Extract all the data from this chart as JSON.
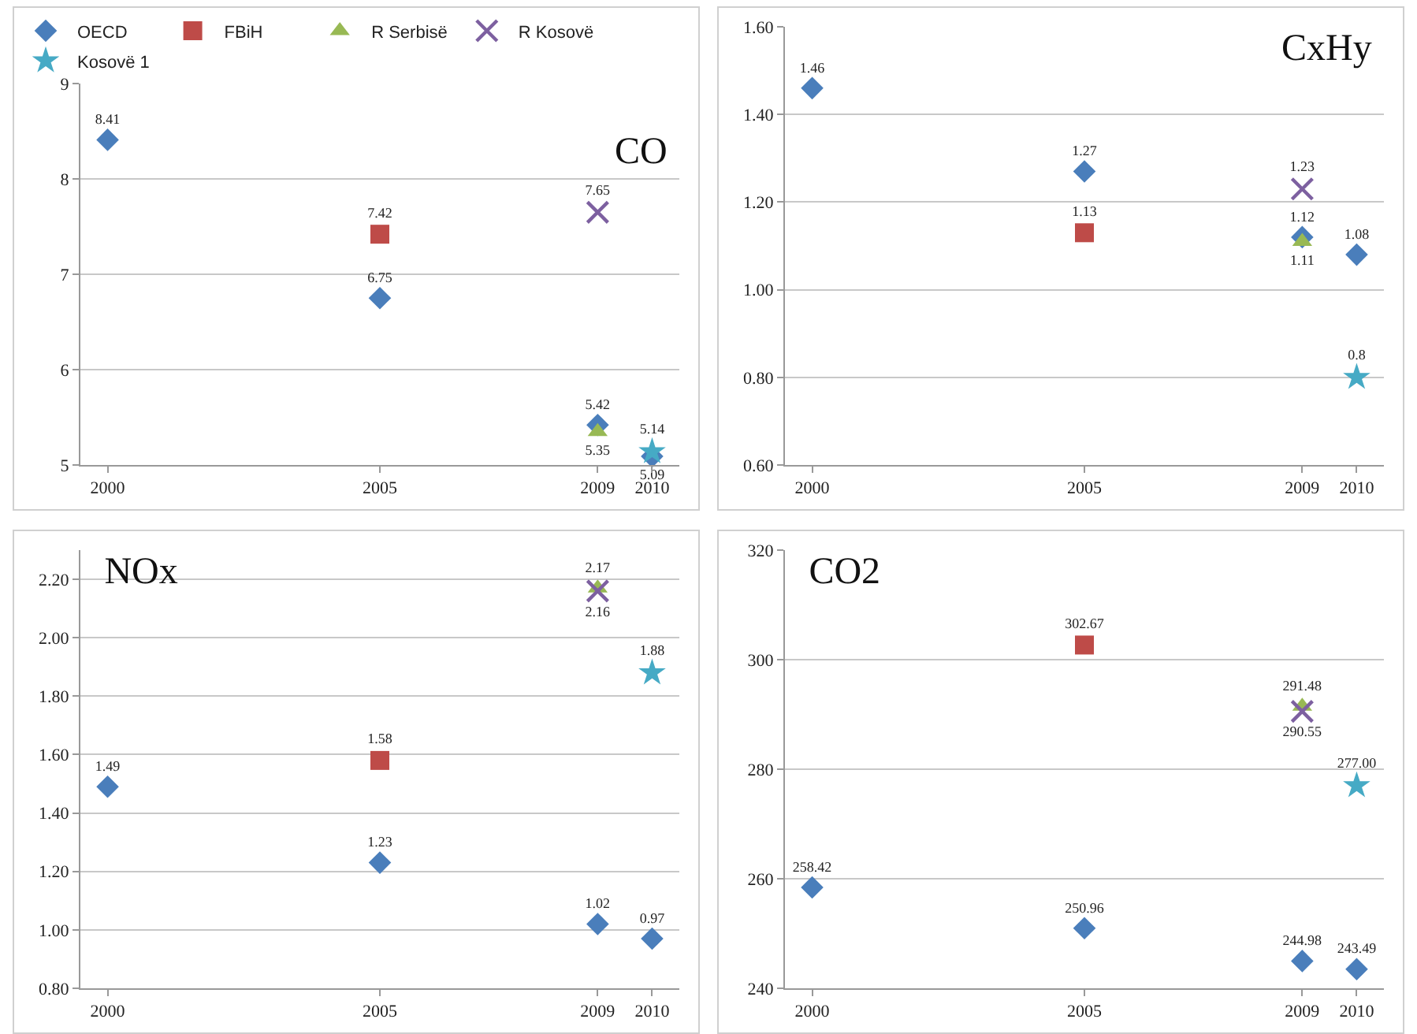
{
  "chart_data": [
    {
      "type": "scatter",
      "title": "CO",
      "xlim": [
        1999.5,
        2010.5
      ],
      "xticks": [
        2000,
        2005,
        2009,
        2010
      ],
      "ylim": [
        5,
        9
      ],
      "yticks": [
        5,
        6,
        7,
        8,
        9
      ],
      "grid": "y",
      "legend": "top",
      "series": [
        {
          "name": "OECD",
          "color": "#4a7ebb",
          "marker": "diamond",
          "x": [
            2000,
            2005,
            2009,
            2010
          ],
          "values": [
            8.41,
            6.75,
            5.42,
            5.09
          ],
          "value_labels": [
            "8.41",
            "6.75",
            "5.42",
            "5.09"
          ]
        },
        {
          "name": "FBiH",
          "color": "#be4b48",
          "marker": "square",
          "x": [
            2005
          ],
          "values": [
            7.42
          ],
          "value_labels": [
            "7.42"
          ]
        },
        {
          "name": "R Serbisë",
          "color": "#98b954",
          "marker": "triangle",
          "x": [
            2009
          ],
          "values": [
            5.35
          ],
          "value_labels": [
            "5.35"
          ]
        },
        {
          "name": "R Kosovë",
          "color": "#7d60a0",
          "marker": "cross",
          "x": [
            2009
          ],
          "values": [
            7.65
          ],
          "value_labels": [
            "7.65"
          ]
        },
        {
          "name": "Kosovë 1",
          "color": "#46aac5",
          "marker": "star",
          "x": [
            2010
          ],
          "values": [
            5.14
          ],
          "value_labels": [
            "5.14"
          ]
        }
      ]
    },
    {
      "type": "scatter",
      "title": "CxHy",
      "xlim": [
        1999.5,
        2010.5
      ],
      "xticks": [
        2000,
        2005,
        2009,
        2010
      ],
      "ylim": [
        0.6,
        1.6
      ],
      "yticks": [
        {
          "value": 0.6,
          "label": "0.60"
        },
        {
          "value": 0.8,
          "label": "0.80"
        },
        {
          "value": 1.0,
          "label": "1.00"
        },
        {
          "value": 1.2,
          "label": "1.20"
        },
        {
          "value": 1.4,
          "label": "1.40"
        },
        {
          "value": 1.6,
          "label": "1.60"
        }
      ],
      "grid": "y",
      "series": [
        {
          "color": "#4a7ebb",
          "marker": "diamond",
          "x": [
            2000,
            2005,
            2009,
            2010
          ],
          "values": [
            1.46,
            1.27,
            1.12,
            1.08
          ],
          "value_labels": [
            "1.46",
            "1.27",
            "1.12",
            "1.08"
          ]
        },
        {
          "color": "#be4b48",
          "marker": "square",
          "x": [
            2005
          ],
          "values": [
            1.13
          ],
          "value_labels": [
            "1.13"
          ]
        },
        {
          "color": "#98b954",
          "marker": "triangle",
          "x": [
            2009
          ],
          "values": [
            1.11
          ],
          "value_labels": [
            "1.11"
          ]
        },
        {
          "color": "#7d60a0",
          "marker": "cross",
          "x": [
            2009
          ],
          "values": [
            1.23
          ],
          "value_labels": [
            "1.23"
          ]
        },
        {
          "color": "#46aac5",
          "marker": "star",
          "x": [
            2010
          ],
          "values": [
            0.8
          ],
          "value_labels": [
            "0.8"
          ]
        }
      ]
    },
    {
      "type": "scatter",
      "title": "NOx",
      "xlim": [
        1999.5,
        2010.5
      ],
      "xticks": [
        2000,
        2005,
        2009,
        2010
      ],
      "ylim": [
        0.8,
        2.3
      ],
      "yticks": [
        {
          "value": 0.8,
          "label": "0.80"
        },
        {
          "value": 1.0,
          "label": "1.00"
        },
        {
          "value": 1.2,
          "label": "1.20"
        },
        {
          "value": 1.4,
          "label": "1.40"
        },
        {
          "value": 1.6,
          "label": "1.60"
        },
        {
          "value": 1.8,
          "label": "1.80"
        },
        {
          "value": 2.0,
          "label": "2.00"
        },
        {
          "value": 2.2,
          "label": "2.20"
        }
      ],
      "grid": "y",
      "series": [
        {
          "color": "#4a7ebb",
          "marker": "diamond",
          "x": [
            2000,
            2005,
            2009,
            2010
          ],
          "values": [
            1.49,
            1.23,
            1.02,
            0.97
          ],
          "value_labels": [
            "1.49",
            "1.23",
            "1.02",
            "0.97"
          ]
        },
        {
          "color": "#be4b48",
          "marker": "square",
          "x": [
            2005
          ],
          "values": [
            1.58
          ],
          "value_labels": [
            "1.58"
          ]
        },
        {
          "color": "#98b954",
          "marker": "triangle",
          "x": [
            2009
          ],
          "values": [
            2.17
          ],
          "value_labels": [
            "2.17"
          ]
        },
        {
          "color": "#7d60a0",
          "marker": "cross",
          "x": [
            2009
          ],
          "values": [
            2.16
          ],
          "value_labels": [
            "2.16"
          ]
        },
        {
          "color": "#46aac5",
          "marker": "star",
          "x": [
            2010
          ],
          "values": [
            1.88
          ],
          "value_labels": [
            "1.88"
          ]
        }
      ]
    },
    {
      "type": "scatter",
      "title": "CO2",
      "xlim": [
        1999.5,
        2010.5
      ],
      "xticks": [
        2000,
        2005,
        2009,
        2010
      ],
      "ylim": [
        240,
        320
      ],
      "yticks": [
        240,
        260,
        280,
        300,
        320
      ],
      "grid": "y",
      "series": [
        {
          "color": "#4a7ebb",
          "marker": "diamond",
          "x": [
            2000,
            2005,
            2009,
            2010
          ],
          "values": [
            258.42,
            250.96,
            244.98,
            243.49
          ],
          "value_labels": [
            "258.42",
            "250.96",
            "244.98",
            "243.49"
          ]
        },
        {
          "color": "#be4b48",
          "marker": "square",
          "x": [
            2005
          ],
          "values": [
            302.67
          ],
          "value_labels": [
            "302.67"
          ]
        },
        {
          "color": "#98b954",
          "marker": "triangle",
          "x": [
            2009
          ],
          "values": [
            291.48
          ],
          "value_labels": [
            "291.48"
          ]
        },
        {
          "color": "#7d60a0",
          "marker": "cross",
          "x": [
            2009
          ],
          "values": [
            290.55
          ],
          "value_labels": [
            "290.55"
          ]
        },
        {
          "color": "#46aac5",
          "marker": "star",
          "x": [
            2010
          ],
          "values": [
            277.0
          ],
          "value_labels": [
            "277.00"
          ]
        }
      ]
    }
  ]
}
